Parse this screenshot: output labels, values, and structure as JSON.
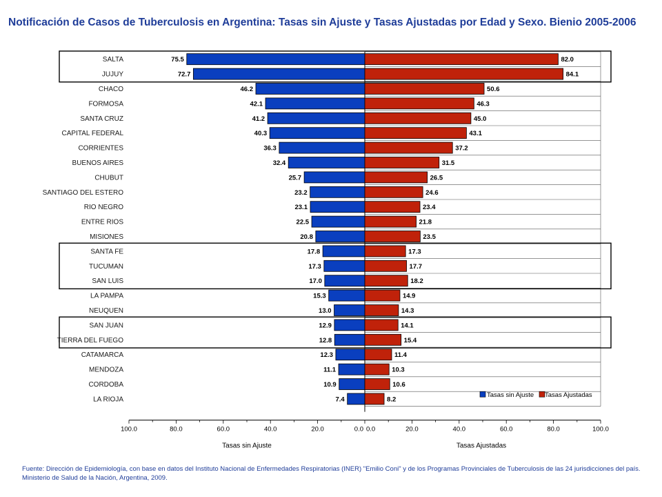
{
  "title": "Notificación de Casos de Tuberculosis en Argentina:  Tasas sin Ajuste y Tasas Ajustadas por Edad y Sexo. Bienio 2005-2006",
  "source": "Fuente: Dirección de Epidemiología, con base en datos del Instituto Nacional de Enfermedades Respiratorias (INER) \"Emilio Coni\" y de los Programas Provinciales de Tuberculosis de las 24 jurisdicciones del país. Ministerio de Salud de la Nación, Argentina, 2009.",
  "colors": {
    "left_bar": "#0a3fbf",
    "right_bar": "#c0220a",
    "text": "#1f3d99"
  },
  "chart_data": {
    "type": "bar",
    "orientation": "horizontal-butterfly",
    "categories": [
      "SALTA",
      "JUJUY",
      "CHACO",
      "FORMOSA",
      "SANTA CRUZ",
      "CAPITAL FEDERAL",
      "CORRIENTES",
      "BUENOS AIRES",
      "CHUBUT",
      "SANTIAGO DEL ESTERO",
      "RIO NEGRO",
      "ENTRE RIOS",
      "MISIONES",
      "SANTA FE",
      "TUCUMAN",
      "SAN LUIS",
      "LA PAMPA",
      "NEUQUEN",
      "SAN JUAN",
      "TIERRA DEL FUEGO",
      "CATAMARCA",
      "MENDOZA",
      "CORDOBA",
      "LA RIOJA"
    ],
    "value_labels_left": [
      "75.5",
      "72.7",
      "46.2",
      "42.1",
      "41.2",
      "40.3",
      "36.3",
      "32.4",
      "25.7",
      "23.2",
      "23.1",
      "22.5",
      "20.8",
      "17.8",
      "17.3",
      "17.0",
      "15.3",
      "13.0",
      "12.9",
      "12.8",
      "12.3",
      "11.1",
      "10.9",
      "7.4"
    ],
    "value_labels_right": [
      "82.0",
      "84.1",
      "50.6",
      "46.3",
      "45.0",
      "43.1",
      "37.2",
      "31.5",
      "26.5",
      "24.6",
      "23.4",
      "21.8",
      "23.5",
      "17.3",
      "17.7",
      "18.2",
      "14.9",
      "14.3",
      "14.1",
      "15.4",
      "11.4",
      "10.3",
      "10.6",
      "8.2"
    ],
    "series": [
      {
        "name": "Tasas sin Ajuste",
        "side": "left",
        "values": [
          75.5,
          72.7,
          46.2,
          42.1,
          41.2,
          40.3,
          36.3,
          32.4,
          25.7,
          23.2,
          23.1,
          22.5,
          20.8,
          17.8,
          17.3,
          17.0,
          15.3,
          13.0,
          12.9,
          12.8,
          12.3,
          11.1,
          10.9,
          7.4
        ]
      },
      {
        "name": "Tasas Ajustadas",
        "side": "right",
        "values": [
          82.0,
          84.1,
          50.6,
          46.3,
          45.0,
          43.1,
          37.2,
          31.5,
          26.5,
          24.6,
          23.4,
          21.8,
          23.5,
          17.3,
          17.7,
          18.2,
          14.9,
          14.3,
          14.1,
          15.4,
          11.4,
          10.3,
          10.6,
          8.2
        ]
      }
    ],
    "x_left_label": "Tasas sin Ajuste",
    "x_right_label": "Tasas Ajustadas",
    "x_ticks_left": [
      "100.0",
      "80.0",
      "60.0",
      "40.0",
      "20.0",
      "0.0"
    ],
    "x_ticks_right": [
      "0.0",
      "20.0",
      "40.0",
      "60.0",
      "80.0",
      "100.0"
    ],
    "xlim": [
      0,
      100
    ],
    "grid": true,
    "legend": "bottom-right",
    "highlight_groups": [
      [
        0,
        1
      ],
      [
        13,
        15
      ],
      [
        18,
        19
      ]
    ]
  }
}
